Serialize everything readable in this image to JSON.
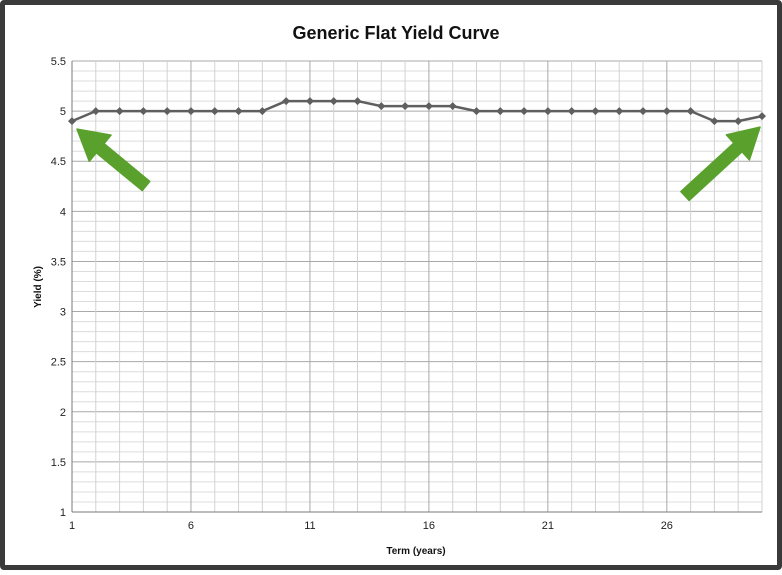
{
  "chart_data": {
    "type": "line",
    "title": "Generic  Flat Yield Curve",
    "xlabel": "Term (years)",
    "ylabel": "Yield (%)",
    "xlim": [
      1,
      30
    ],
    "ylim": [
      1,
      5.5
    ],
    "x_ticks": [
      "1",
      "6",
      "11",
      "16",
      "21",
      "26"
    ],
    "y_ticks": [
      "1",
      "1.5",
      "2",
      "2.5",
      "3",
      "3.5",
      "4",
      "4.5",
      "5",
      "5.5"
    ],
    "grid": true,
    "legend": "none",
    "series": [
      {
        "color": "#5f5f5f",
        "marker": "diamond",
        "x": [
          1,
          2,
          3,
          4,
          5,
          6,
          7,
          8,
          9,
          10,
          11,
          12,
          13,
          14,
          15,
          16,
          17,
          18,
          19,
          20,
          21,
          22,
          23,
          24,
          25,
          26,
          27,
          28,
          29,
          30
        ],
        "y": [
          4.9,
          5.0,
          5.0,
          5.0,
          5.0,
          5.0,
          5.0,
          5.0,
          5.0,
          5.1,
          5.1,
          5.1,
          5.1,
          5.05,
          5.05,
          5.05,
          5.05,
          5.0,
          5.0,
          5.0,
          5.0,
          5.0,
          5.0,
          5.0,
          5.0,
          5.0,
          5.0,
          4.9,
          4.9,
          4.95
        ]
      }
    ],
    "annotations": [
      {
        "type": "arrow",
        "color": "#5aa02c",
        "points_to": "first data point (x=1)"
      },
      {
        "type": "arrow",
        "color": "#5aa02c",
        "points_to": "last data point (x=30)"
      }
    ]
  }
}
